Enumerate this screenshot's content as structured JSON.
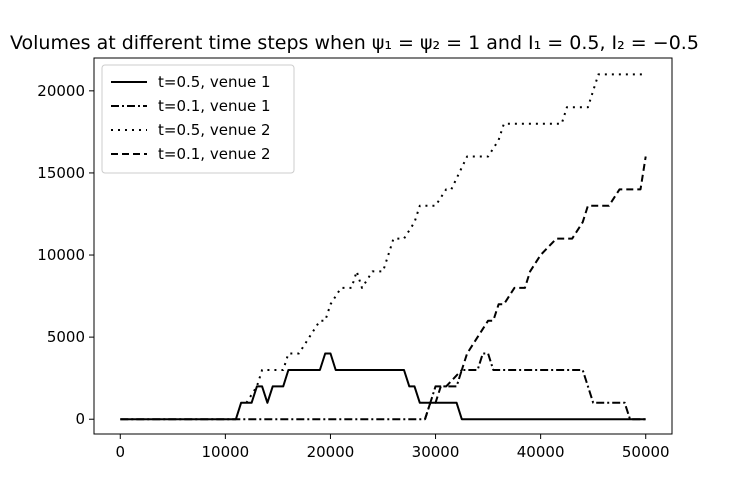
{
  "chart_data": {
    "type": "line",
    "title": "Volumes at different time steps when ψ₁ = ψ₂ = 1 and I₁ = 0.5, I₂ = −0.5",
    "xlabel": "",
    "ylabel": "",
    "xlim": [
      -2500,
      52500
    ],
    "ylim": [
      -900,
      22000
    ],
    "xticks": [
      0,
      10000,
      20000,
      30000,
      40000,
      50000
    ],
    "yticks": [
      0,
      5000,
      10000,
      15000,
      20000
    ],
    "grid": false,
    "legend_position": "top-left",
    "series": [
      {
        "name": "t=0.5, venue 1",
        "style": "solid",
        "color": "#000000",
        "points": [
          [
            0,
            0
          ],
          [
            11000,
            0
          ],
          [
            11500,
            1000
          ],
          [
            12500,
            1000
          ],
          [
            13000,
            2000
          ],
          [
            13500,
            2000
          ],
          [
            14000,
            1000
          ],
          [
            14500,
            2000
          ],
          [
            15500,
            2000
          ],
          [
            16000,
            3000
          ],
          [
            19000,
            3000
          ],
          [
            19500,
            4000
          ],
          [
            20000,
            4000
          ],
          [
            20500,
            3000
          ],
          [
            27000,
            3000
          ],
          [
            27500,
            2000
          ],
          [
            28000,
            2000
          ],
          [
            28500,
            1000
          ],
          [
            32000,
            1000
          ],
          [
            32500,
            0
          ],
          [
            50000,
            0
          ]
        ]
      },
      {
        "name": "t=0.1, venue 1",
        "style": "dashdot",
        "color": "#000000",
        "points": [
          [
            0,
            0
          ],
          [
            28000,
            0
          ],
          [
            29000,
            0
          ],
          [
            29500,
            1000
          ],
          [
            30000,
            2000
          ],
          [
            31000,
            2000
          ],
          [
            32000,
            2000
          ],
          [
            32500,
            3000
          ],
          [
            34000,
            3000
          ],
          [
            34500,
            4000
          ],
          [
            35000,
            4000
          ],
          [
            35500,
            3000
          ],
          [
            44000,
            3000
          ],
          [
            45000,
            1000
          ],
          [
            48000,
            1000
          ],
          [
            48500,
            0
          ],
          [
            50000,
            0
          ]
        ]
      },
      {
        "name": "t=0.5, venue 2",
        "style": "dotted",
        "color": "#000000",
        "points": [
          [
            12000,
            1000
          ],
          [
            13000,
            2000
          ],
          [
            13500,
            3000
          ],
          [
            14000,
            3000
          ],
          [
            15500,
            3000
          ],
          [
            16000,
            4000
          ],
          [
            17000,
            4000
          ],
          [
            18000,
            5000
          ],
          [
            19000,
            6000
          ],
          [
            19500,
            6000
          ],
          [
            20000,
            7000
          ],
          [
            21000,
            8000
          ],
          [
            22000,
            8000
          ],
          [
            22500,
            9000
          ],
          [
            23000,
            8000
          ],
          [
            24000,
            9000
          ],
          [
            25000,
            9000
          ],
          [
            25500,
            10000
          ],
          [
            26000,
            11000
          ],
          [
            27000,
            11000
          ],
          [
            28000,
            12000
          ],
          [
            28500,
            13000
          ],
          [
            30000,
            13000
          ],
          [
            31000,
            14000
          ],
          [
            31500,
            14000
          ],
          [
            33000,
            16000
          ],
          [
            35000,
            16000
          ],
          [
            36000,
            17000
          ],
          [
            36500,
            18000
          ],
          [
            42000,
            18000
          ],
          [
            42500,
            19000
          ],
          [
            44500,
            19000
          ],
          [
            45500,
            21000
          ],
          [
            50000,
            21000
          ]
        ]
      },
      {
        "name": "t=0.1, venue 2",
        "style": "dashed",
        "color": "#000000",
        "points": [
          [
            29000,
            0
          ],
          [
            29500,
            1000
          ],
          [
            30000,
            1000
          ],
          [
            30500,
            2000
          ],
          [
            31000,
            2000
          ],
          [
            32500,
            3000
          ],
          [
            33000,
            4000
          ],
          [
            34000,
            5000
          ],
          [
            35000,
            6000
          ],
          [
            35500,
            6000
          ],
          [
            36000,
            7000
          ],
          [
            36500,
            7000
          ],
          [
            37500,
            8000
          ],
          [
            38500,
            8000
          ],
          [
            39000,
            9000
          ],
          [
            40000,
            10000
          ],
          [
            41500,
            11000
          ],
          [
            43000,
            11000
          ],
          [
            44000,
            12000
          ],
          [
            44500,
            13000
          ],
          [
            46500,
            13000
          ],
          [
            47500,
            14000
          ],
          [
            48500,
            14000
          ],
          [
            49500,
            14000
          ],
          [
            50000,
            16000
          ]
        ]
      }
    ]
  }
}
